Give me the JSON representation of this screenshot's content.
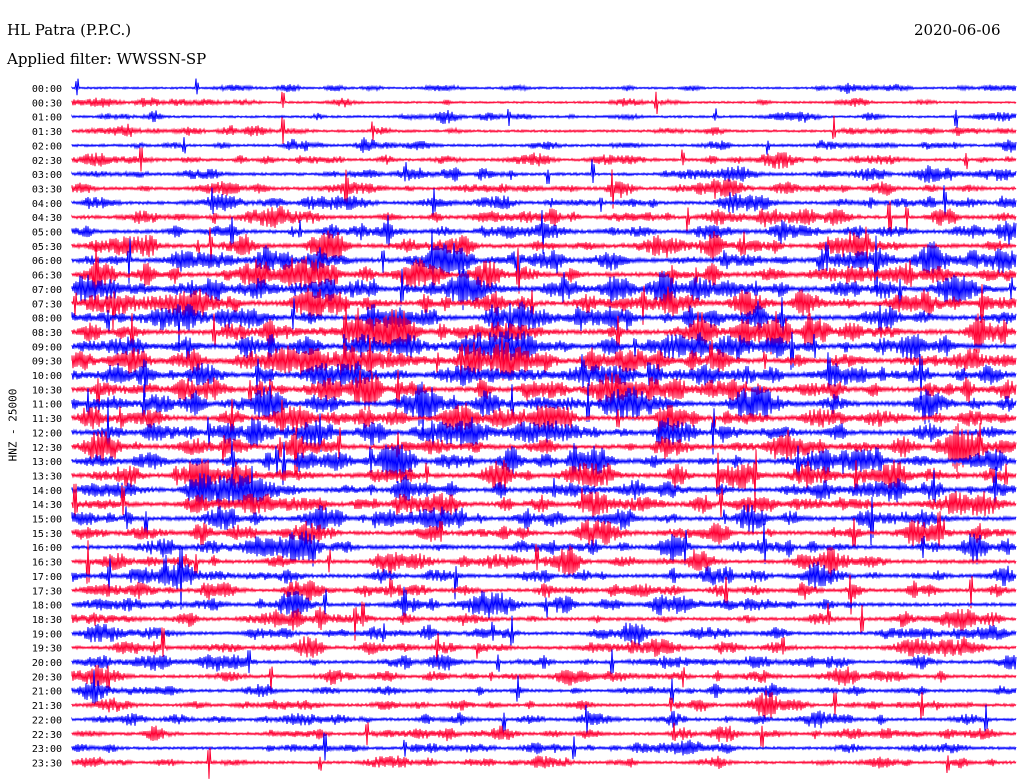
{
  "header": {
    "station": "HL Patra (P.P.C.)",
    "filter": "Applied filter: WWSSN-SP",
    "date": "2020-06-06"
  },
  "colors": {
    "trace_a": "#0000ff",
    "trace_b": "#ff0033"
  },
  "chart_data": {
    "type": "line",
    "title": "HL Patra (P.P.C.)",
    "ylabel": "HNZ - 25000",
    "row_labels": [
      "00:00",
      "00:30",
      "01:00",
      "01:30",
      "02:00",
      "02:30",
      "03:00",
      "03:30",
      "04:00",
      "04:30",
      "05:00",
      "05:30",
      "06:00",
      "06:30",
      "07:00",
      "07:30",
      "08:00",
      "08:30",
      "09:00",
      "09:30",
      "10:00",
      "10:30",
      "11:00",
      "11:30",
      "12:00",
      "12:30",
      "13:00",
      "13:30",
      "14:00",
      "14:30",
      "15:00",
      "15:30",
      "16:00",
      "16:30",
      "17:00",
      "17:30",
      "18:00",
      "18:30",
      "19:00",
      "19:30",
      "20:00",
      "20:30",
      "21:00",
      "21:30",
      "22:00",
      "22:30",
      "23:00",
      "23:30"
    ],
    "activity_level": [
      0.25,
      0.25,
      0.3,
      0.35,
      0.4,
      0.45,
      0.5,
      0.55,
      0.6,
      0.65,
      0.7,
      0.8,
      0.9,
      0.95,
      1.0,
      1.0,
      1.0,
      1.0,
      1.0,
      1.0,
      0.95,
      0.95,
      0.95,
      0.95,
      0.95,
      0.9,
      0.9,
      0.9,
      0.85,
      0.8,
      0.8,
      0.75,
      0.75,
      0.7,
      0.7,
      0.65,
      0.65,
      0.6,
      0.6,
      0.6,
      0.55,
      0.55,
      0.5,
      0.5,
      0.5,
      0.5,
      0.45,
      0.45
    ],
    "grid": false
  }
}
